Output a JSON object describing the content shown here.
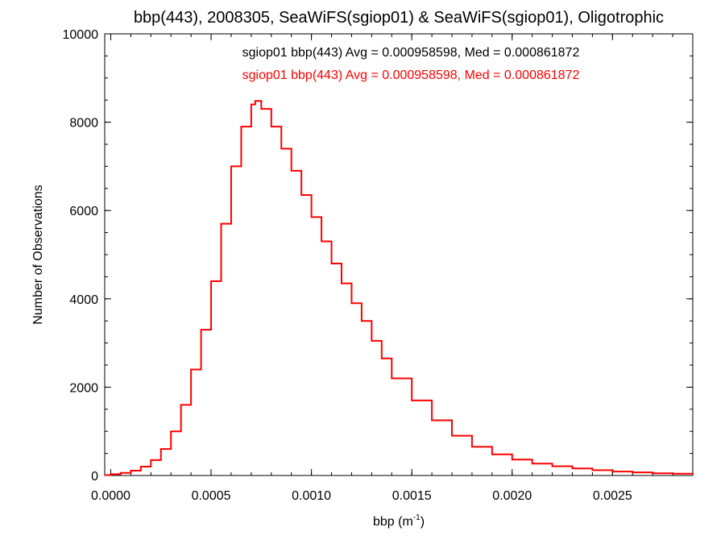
{
  "chart_data": {
    "type": "histogram",
    "title": "bbp(443), 2008305, SeaWiFS(sgiop01) & SeaWiFS(sgiop01), Oligotrophic",
    "xlabel": "bbp (m",
    "xlabel_sup": "-1",
    "xlabel_close": ")",
    "ylabel": "Number of Observations",
    "xlim": [
      -3e-05,
      0.0029
    ],
    "ylim": [
      0,
      10000
    ],
    "xticks": [
      0.0,
      0.0005,
      0.001,
      0.0015,
      0.002,
      0.0025
    ],
    "xtick_labels": [
      "0.0000",
      "0.0005",
      "0.0010",
      "0.0015",
      "0.0020",
      "0.0025"
    ],
    "yticks": [
      0,
      2000,
      4000,
      6000,
      8000,
      10000
    ],
    "ytick_labels": [
      "0",
      "2000",
      "4000",
      "6000",
      "8000",
      "10000"
    ],
    "legend": [
      {
        "text": "sgiop01 bbp(443) Avg = 0.000958598, Med = 0.000861872",
        "color": "#000000"
      },
      {
        "text": "sgiop01 bbp(443) Avg = 0.000958598, Med = 0.000861872",
        "color": "#ff0000"
      }
    ],
    "series": [
      {
        "color": "#ff0000",
        "x": [
          -3e-05,
          0.0,
          5e-05,
          0.0001,
          0.00015,
          0.0002,
          0.00025,
          0.0003,
          0.00035,
          0.0004,
          0.00045,
          0.0005,
          0.00055,
          0.0006,
          0.00065,
          0.0007,
          0.00072,
          0.00075,
          0.0008,
          0.00085,
          0.0009,
          0.00095,
          0.001,
          0.00105,
          0.0011,
          0.00115,
          0.0012,
          0.00125,
          0.0013,
          0.00135,
          0.0014,
          0.0015,
          0.0016,
          0.0017,
          0.0018,
          0.0019,
          0.002,
          0.0021,
          0.0022,
          0.0023,
          0.0024,
          0.0025,
          0.0026,
          0.0027,
          0.0028,
          0.0029
        ],
        "y": [
          10,
          30,
          60,
          110,
          200,
          350,
          600,
          1000,
          1600,
          2400,
          3300,
          4400,
          5700,
          7000,
          7900,
          8400,
          8480,
          8300,
          7900,
          7400,
          6900,
          6350,
          5850,
          5300,
          4800,
          4350,
          3900,
          3500,
          3050,
          2650,
          2200,
          1700,
          1250,
          900,
          650,
          480,
          360,
          270,
          210,
          160,
          120,
          90,
          70,
          50,
          40,
          30
        ]
      }
    ]
  }
}
